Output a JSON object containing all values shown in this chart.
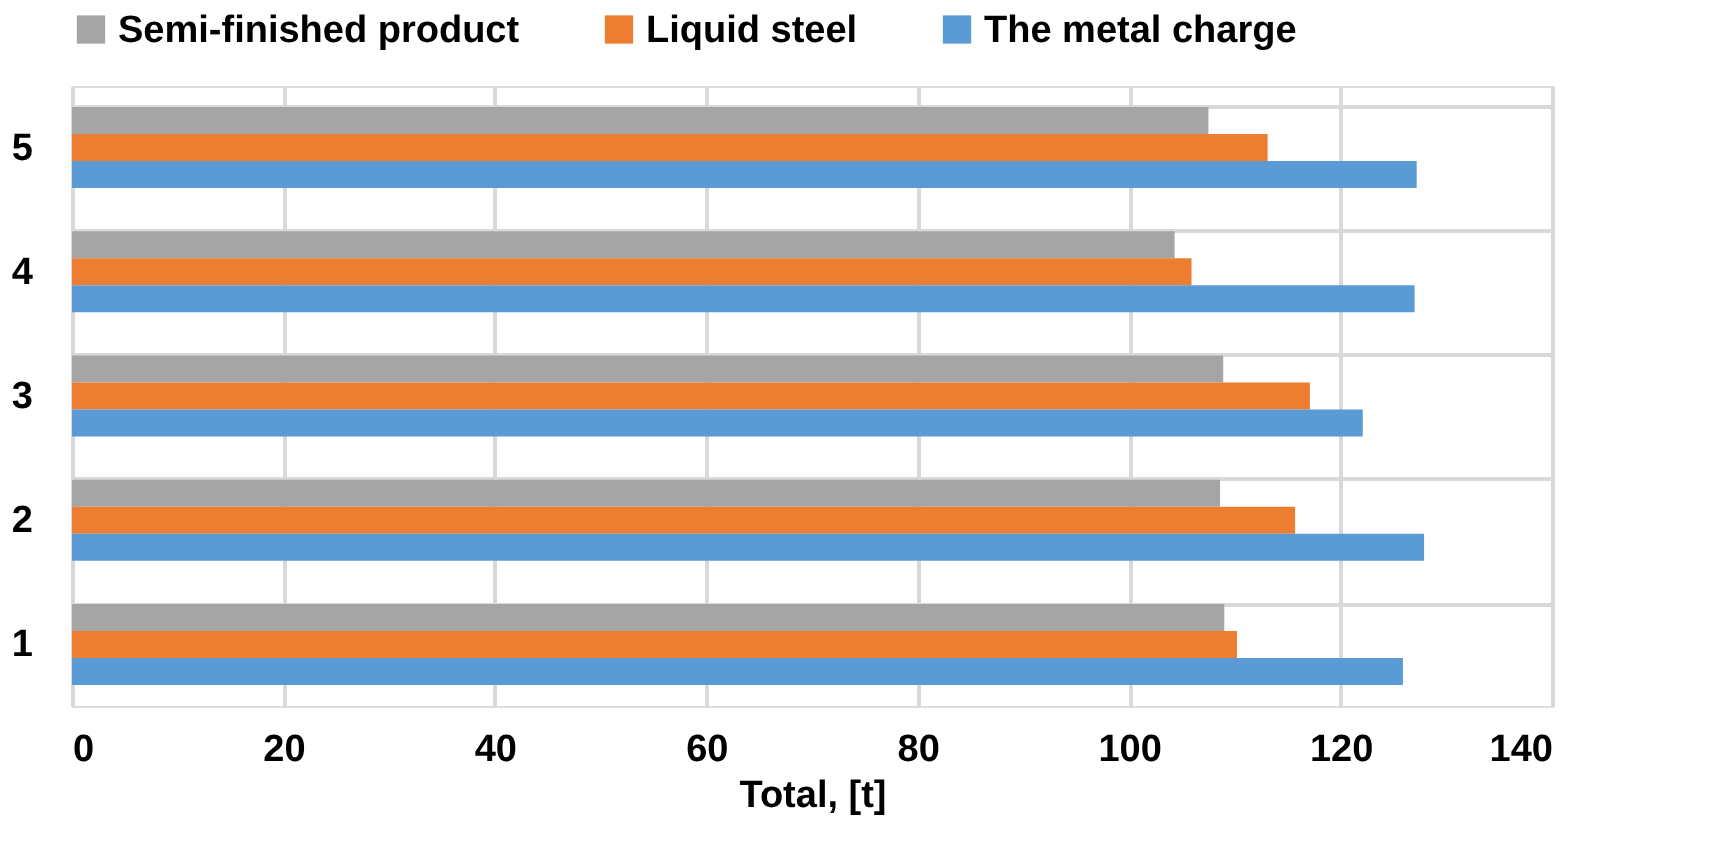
{
  "chart_data": {
    "type": "bar",
    "orientation": "horizontal",
    "xlabel": "Total, [t]",
    "categories": [
      "5",
      "4",
      "3",
      "2",
      "1"
    ],
    "series": [
      {
        "name": "Semi-finished product",
        "color": "#a5a5a5",
        "values": [
          107.5,
          104.3,
          108.9,
          108.6,
          109.0
        ]
      },
      {
        "name": "Liquid steel",
        "color": "#ed7d31",
        "values": [
          113.1,
          105.9,
          117.1,
          115.7,
          110.2
        ]
      },
      {
        "name": "The metal charge",
        "color": "#5b9bd5",
        "values": [
          127.2,
          127.0,
          122.1,
          127.9,
          125.9
        ]
      }
    ],
    "xlim": [
      0,
      140
    ],
    "xticks": [
      0,
      20,
      40,
      60,
      80,
      100,
      120,
      140
    ],
    "grid": true,
    "legend": "top"
  }
}
